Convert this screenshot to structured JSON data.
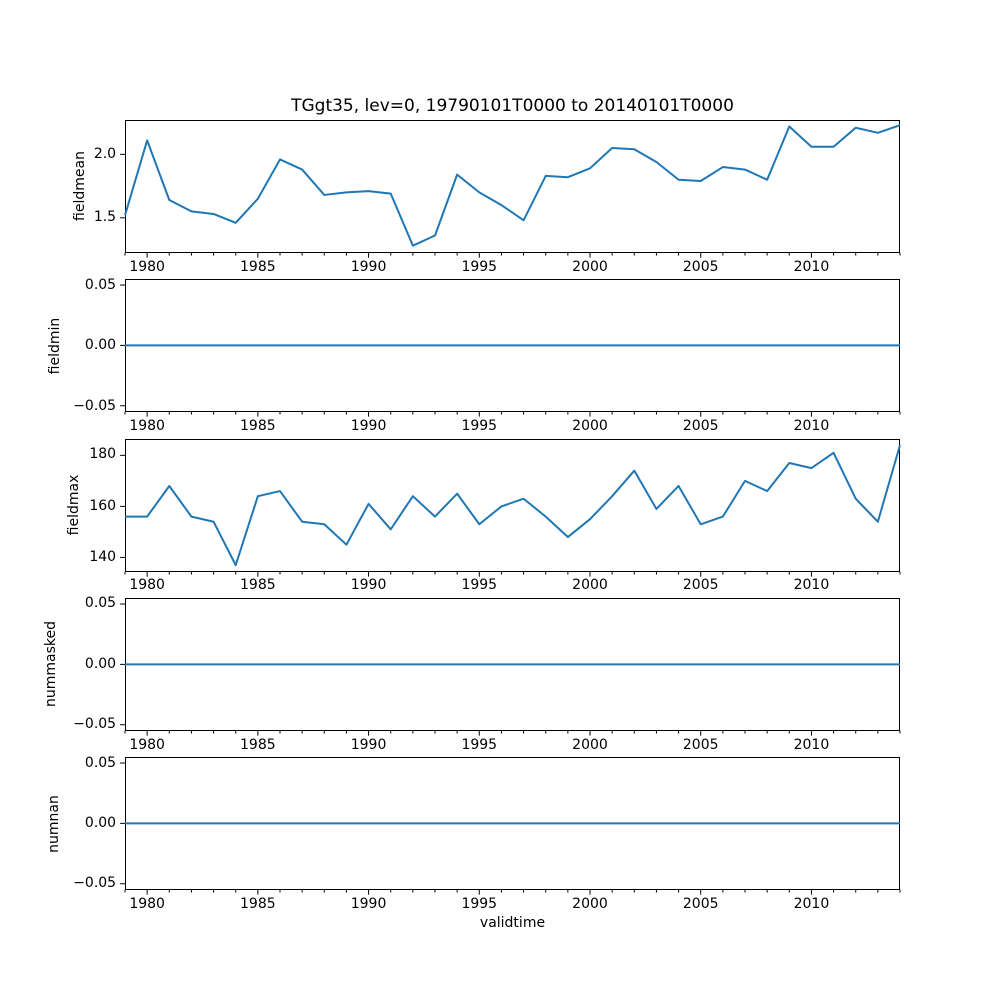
{
  "figure": {
    "title": "TGgt35, lev=0, 19790101T0000 to 20140101T0000",
    "xlabel": "validtime",
    "background": "#ffffff"
  },
  "style": {
    "line_color": "#1f77b4",
    "axis_color": "#000000",
    "text_color": "#000000"
  },
  "x_axis": {
    "label": "validtime",
    "xlim": [
      1979,
      2014
    ],
    "major_tick_years": [
      1980,
      1985,
      1990,
      1995,
      2000,
      2005,
      2010
    ],
    "major_tick_labels": [
      "1980",
      "1985",
      "1990",
      "1995",
      "2000",
      "2005",
      "2010"
    ],
    "minor_tick_step_years": 1
  },
  "chart_data": [
    {
      "type": "line",
      "name": "fieldmean",
      "ylabel": "fieldmean",
      "x": [
        1979,
        1980,
        1981,
        1982,
        1983,
        1984,
        1985,
        1986,
        1987,
        1988,
        1989,
        1990,
        1991,
        1992,
        1993,
        1994,
        1995,
        1996,
        1997,
        1998,
        1999,
        2000,
        2001,
        2002,
        2003,
        2004,
        2005,
        2006,
        2007,
        2008,
        2009,
        2010,
        2011,
        2012,
        2013,
        2014
      ],
      "values": [
        1.52,
        2.11,
        1.64,
        1.55,
        1.53,
        1.46,
        1.65,
        1.96,
        1.88,
        1.68,
        1.7,
        1.71,
        1.69,
        1.28,
        1.36,
        1.84,
        1.7,
        1.6,
        1.48,
        1.83,
        1.82,
        1.89,
        2.05,
        2.04,
        1.94,
        1.8,
        1.79,
        1.9,
        1.88,
        1.8,
        2.22,
        2.06,
        2.06,
        2.21,
        2.17,
        2.23
      ],
      "ylim": [
        1.224,
        2.271
      ],
      "yticks": [
        {
          "value": 1.5,
          "label": "1.5"
        },
        {
          "value": 2.0,
          "label": "2.0"
        }
      ],
      "grid": false,
      "legend": null
    },
    {
      "type": "line",
      "name": "fieldmin",
      "ylabel": "fieldmin",
      "x": [
        1979,
        1980,
        1981,
        1982,
        1983,
        1984,
        1985,
        1986,
        1987,
        1988,
        1989,
        1990,
        1991,
        1992,
        1993,
        1994,
        1995,
        1996,
        1997,
        1998,
        1999,
        2000,
        2001,
        2002,
        2003,
        2004,
        2005,
        2006,
        2007,
        2008,
        2009,
        2010,
        2011,
        2012,
        2013,
        2014
      ],
      "values": [
        0,
        0,
        0,
        0,
        0,
        0,
        0,
        0,
        0,
        0,
        0,
        0,
        0,
        0,
        0,
        0,
        0,
        0,
        0,
        0,
        0,
        0,
        0,
        0,
        0,
        0,
        0,
        0,
        0,
        0,
        0,
        0,
        0,
        0,
        0,
        0
      ],
      "ylim": [
        -0.055,
        0.055
      ],
      "yticks": [
        {
          "value": -0.05,
          "label": "−0.05"
        },
        {
          "value": 0.0,
          "label": "0.00"
        },
        {
          "value": 0.05,
          "label": "0.05"
        }
      ],
      "grid": false,
      "legend": null
    },
    {
      "type": "line",
      "name": "fieldmax",
      "ylabel": "fieldmax",
      "x": [
        1979,
        1980,
        1981,
        1982,
        1983,
        1984,
        1985,
        1986,
        1987,
        1988,
        1989,
        1990,
        1991,
        1992,
        1993,
        1994,
        1995,
        1996,
        1997,
        1998,
        1999,
        2000,
        2001,
        2002,
        2003,
        2004,
        2005,
        2006,
        2007,
        2008,
        2009,
        2010,
        2011,
        2012,
        2013,
        2014
      ],
      "values": [
        156,
        156,
        168,
        156,
        154,
        137,
        164,
        166,
        154,
        153,
        145,
        161,
        151,
        164,
        156,
        165,
        153,
        160,
        163,
        156,
        148,
        155,
        164,
        174,
        159,
        168,
        153,
        156,
        170,
        166,
        177,
        175,
        181,
        163,
        154,
        184
      ],
      "ylim": [
        134.4,
        186.4
      ],
      "yticks": [
        {
          "value": 140,
          "label": "140"
        },
        {
          "value": 160,
          "label": "160"
        },
        {
          "value": 180,
          "label": "180"
        }
      ],
      "grid": false,
      "legend": null
    },
    {
      "type": "line",
      "name": "nummasked",
      "ylabel": "nummasked",
      "x": [
        1979,
        1980,
        1981,
        1982,
        1983,
        1984,
        1985,
        1986,
        1987,
        1988,
        1989,
        1990,
        1991,
        1992,
        1993,
        1994,
        1995,
        1996,
        1997,
        1998,
        1999,
        2000,
        2001,
        2002,
        2003,
        2004,
        2005,
        2006,
        2007,
        2008,
        2009,
        2010,
        2011,
        2012,
        2013,
        2014
      ],
      "values": [
        0,
        0,
        0,
        0,
        0,
        0,
        0,
        0,
        0,
        0,
        0,
        0,
        0,
        0,
        0,
        0,
        0,
        0,
        0,
        0,
        0,
        0,
        0,
        0,
        0,
        0,
        0,
        0,
        0,
        0,
        0,
        0,
        0,
        0,
        0,
        0
      ],
      "ylim": [
        -0.055,
        0.055
      ],
      "yticks": [
        {
          "value": -0.05,
          "label": "−0.05"
        },
        {
          "value": 0.0,
          "label": "0.00"
        },
        {
          "value": 0.05,
          "label": "0.05"
        }
      ],
      "grid": false,
      "legend": null
    },
    {
      "type": "line",
      "name": "numnan",
      "ylabel": "numnan",
      "x": [
        1979,
        1980,
        1981,
        1982,
        1983,
        1984,
        1985,
        1986,
        1987,
        1988,
        1989,
        1990,
        1991,
        1992,
        1993,
        1994,
        1995,
        1996,
        1997,
        1998,
        1999,
        2000,
        2001,
        2002,
        2003,
        2004,
        2005,
        2006,
        2007,
        2008,
        2009,
        2010,
        2011,
        2012,
        2013,
        2014
      ],
      "values": [
        0,
        0,
        0,
        0,
        0,
        0,
        0,
        0,
        0,
        0,
        0,
        0,
        0,
        0,
        0,
        0,
        0,
        0,
        0,
        0,
        0,
        0,
        0,
        0,
        0,
        0,
        0,
        0,
        0,
        0,
        0,
        0,
        0,
        0,
        0,
        0
      ],
      "ylim": [
        -0.055,
        0.055
      ],
      "yticks": [
        {
          "value": -0.05,
          "label": "−0.05"
        },
        {
          "value": 0.0,
          "label": "0.00"
        },
        {
          "value": 0.05,
          "label": "0.05"
        }
      ],
      "grid": false,
      "legend": null
    }
  ]
}
